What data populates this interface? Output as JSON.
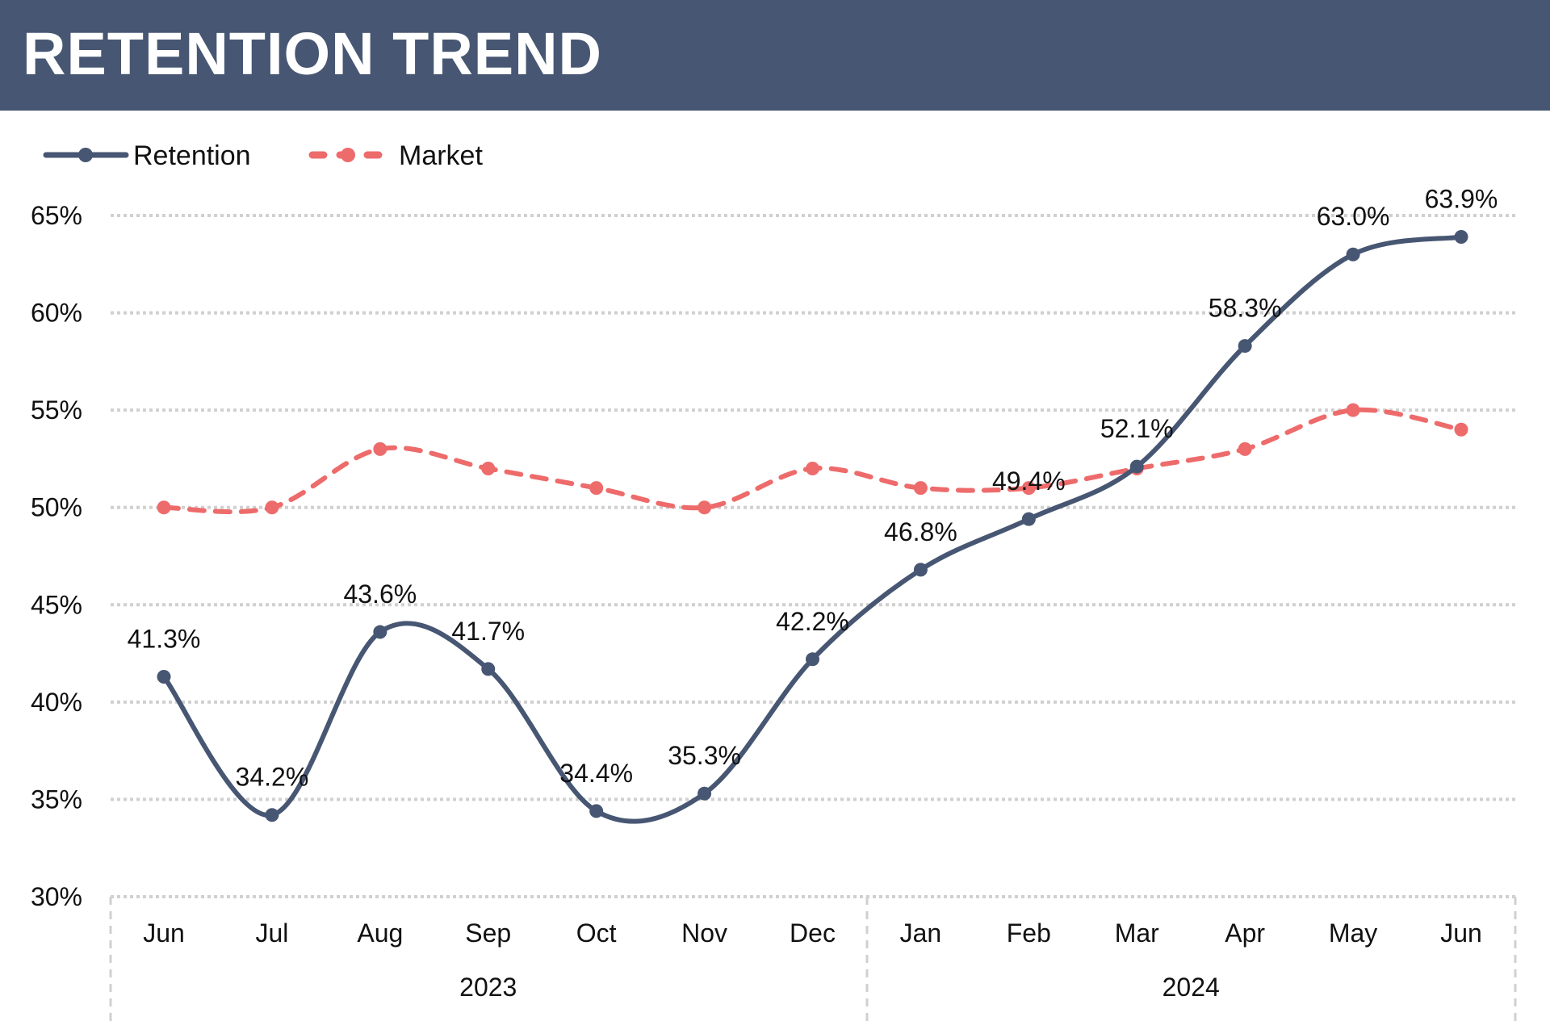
{
  "header": {
    "title": "RETENTION TREND"
  },
  "colors": {
    "header_bg": "#475672",
    "retention": "#475672",
    "market": "#EE6B6B",
    "grid": "#D0D0D0"
  },
  "chart_data": {
    "type": "line",
    "title": "RETENTION TREND",
    "categories": [
      "Jun",
      "Jul",
      "Aug",
      "Sep",
      "Oct",
      "Nov",
      "Dec",
      "Jan",
      "Feb",
      "Mar",
      "Apr",
      "May",
      "Jun"
    ],
    "groups": [
      {
        "label": "2023",
        "count": 7
      },
      {
        "label": "2024",
        "count": 6
      }
    ],
    "series": [
      {
        "name": "Retention",
        "style": "solid smooth",
        "values": [
          41.3,
          34.2,
          43.6,
          41.7,
          34.4,
          35.3,
          42.2,
          46.8,
          49.4,
          52.1,
          58.3,
          63.0,
          63.9
        ],
        "labels": [
          "41.3%",
          "34.2%",
          "43.6%",
          "41.7%",
          "34.4%",
          "35.3%",
          "42.2%",
          "46.8%",
          "49.4%",
          "52.1%",
          "58.3%",
          "63.0%",
          "63.9%"
        ]
      },
      {
        "name": "Market",
        "style": "dashed smooth",
        "values": [
          50,
          50,
          53,
          52,
          51,
          50,
          52,
          51,
          51,
          52,
          53,
          55,
          54
        ]
      }
    ],
    "yticks": [
      "30%",
      "35%",
      "40%",
      "45%",
      "50%",
      "55%",
      "60%",
      "65%"
    ],
    "ylim": [
      30,
      65
    ],
    "grid": true,
    "legend": "top-left"
  }
}
